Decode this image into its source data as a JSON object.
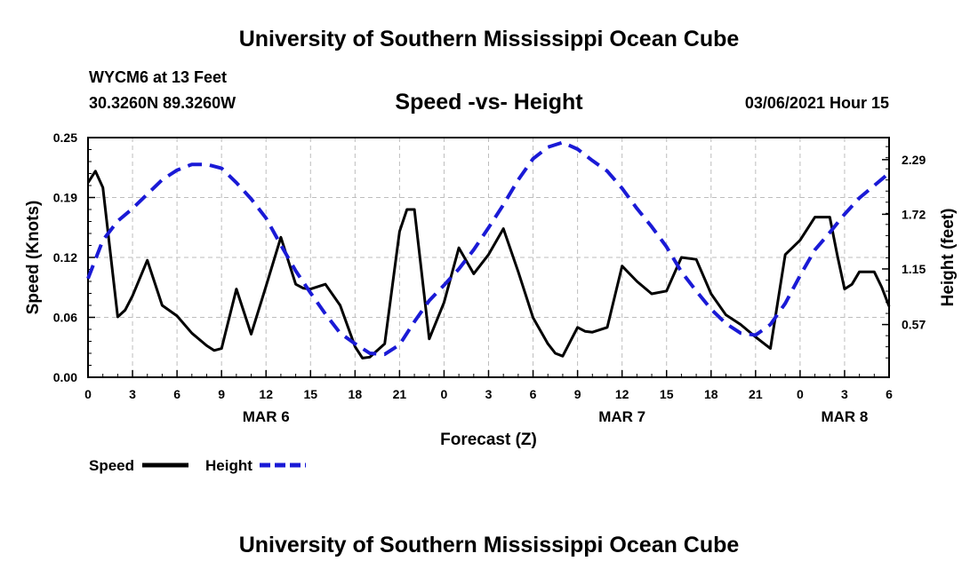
{
  "header": {
    "title_top": "University of Southern Mississippi Ocean Cube",
    "station": "WYCM6 at 13 Feet",
    "coords": "30.3260N 89.3260W",
    "subtitle": "Speed -vs- Height",
    "datestamp": "03/06/2021 Hour 15",
    "title_bottom": "University of Southern Mississippi Ocean Cube"
  },
  "colors": {
    "speed": "#000000",
    "height": "#1a1ad6",
    "grid": "#bdbdbd"
  },
  "chart_data": {
    "type": "line",
    "title": "Speed -vs- Height",
    "xlabel": "Forecast (Z)",
    "ylabel": "Speed (Knots)",
    "y2label": "Height (feet)",
    "xlim": [
      0,
      54
    ],
    "ylim": [
      0,
      0.25
    ],
    "y2lim": [
      0.02,
      2.52
    ],
    "x_ticks": [
      0,
      3,
      6,
      9,
      12,
      15,
      18,
      21,
      24,
      27,
      30,
      33,
      36,
      39,
      42,
      45,
      48,
      51,
      54
    ],
    "x_tick_labels": [
      "0",
      "3",
      "6",
      "9",
      "12",
      "15",
      "18",
      "21",
      "0",
      "3",
      "6",
      "9",
      "12",
      "15",
      "18",
      "21",
      "0",
      "3",
      "6"
    ],
    "y_ticks": [
      0,
      0.0625,
      0.125,
      0.1875,
      0.25
    ],
    "y_tick_labels": [
      "0.00",
      "0.06",
      "0.12",
      "0.19",
      "0.25"
    ],
    "y2_ticks": [
      0.57,
      1.15,
      1.72,
      2.29
    ],
    "y2_tick_labels": [
      "0.57",
      "1.15",
      "1.72",
      "2.29"
    ],
    "day_labels": [
      {
        "text": "MAR 6",
        "x": 12
      },
      {
        "text": "MAR 7",
        "x": 36
      },
      {
        "text": "MAR 8",
        "x": 51
      }
    ],
    "grid": true,
    "legend": {
      "placement": "bottom-left",
      "items": [
        "Speed",
        "Height"
      ]
    },
    "series": [
      {
        "name": "Speed",
        "axis": "left",
        "style": "solid",
        "x": [
          0,
          0.5,
          1,
          2,
          2.5,
          3,
          4,
          5,
          6,
          7,
          8,
          8.5,
          9,
          10,
          11,
          12,
          13,
          14,
          14.5,
          15,
          16,
          17,
          18,
          18.5,
          19,
          20,
          21,
          21.5,
          22,
          23,
          24,
          25,
          26,
          27,
          28,
          29,
          30,
          31,
          31.5,
          32,
          33,
          33.5,
          34,
          35,
          36,
          37,
          38,
          39,
          40,
          41,
          42,
          43,
          44,
          45,
          46,
          47,
          48,
          49,
          50,
          50.5,
          51,
          51.5,
          52,
          53,
          53.5,
          54
        ],
        "values": [
          0.203,
          0.215,
          0.198,
          0.063,
          0.07,
          0.085,
          0.122,
          0.075,
          0.064,
          0.046,
          0.033,
          0.028,
          0.03,
          0.092,
          0.045,
          0.095,
          0.146,
          0.097,
          0.093,
          0.092,
          0.097,
          0.075,
          0.032,
          0.02,
          0.021,
          0.035,
          0.152,
          0.175,
          0.175,
          0.04,
          0.078,
          0.135,
          0.108,
          0.128,
          0.155,
          0.11,
          0.062,
          0.035,
          0.025,
          0.022,
          0.052,
          0.048,
          0.047,
          0.052,
          0.116,
          0.1,
          0.087,
          0.09,
          0.125,
          0.123,
          0.087,
          0.065,
          0.055,
          0.042,
          0.03,
          0.128,
          0.143,
          0.167,
          0.167,
          0.128,
          0.092,
          0.097,
          0.11,
          0.11,
          0.094,
          0.074
        ]
      },
      {
        "name": "Height",
        "axis": "right",
        "style": "dashed",
        "x": [
          0,
          1,
          2,
          3,
          4,
          5,
          6,
          7,
          8,
          9,
          10,
          11,
          12,
          13,
          14,
          15,
          16,
          17,
          18,
          19,
          20,
          21,
          22,
          23,
          24,
          25,
          26,
          27,
          28,
          29,
          30,
          31,
          32,
          33,
          34,
          35,
          36,
          37,
          38,
          39,
          40,
          41,
          42,
          43,
          44,
          45,
          46,
          47,
          48,
          49,
          50,
          51,
          52,
          53,
          54
        ],
        "values": [
          1.05,
          1.45,
          1.65,
          1.78,
          1.93,
          2.08,
          2.18,
          2.24,
          2.24,
          2.2,
          2.05,
          1.88,
          1.68,
          1.4,
          1.13,
          0.9,
          0.68,
          0.48,
          0.37,
          0.27,
          0.26,
          0.36,
          0.6,
          0.82,
          0.98,
          1.15,
          1.35,
          1.58,
          1.82,
          2.08,
          2.3,
          2.42,
          2.47,
          2.4,
          2.28,
          2.17,
          1.99,
          1.78,
          1.59,
          1.38,
          1.12,
          0.92,
          0.73,
          0.58,
          0.48,
          0.46,
          0.57,
          0.79,
          1.08,
          1.35,
          1.53,
          1.72,
          1.89,
          2.02,
          2.15
        ]
      }
    ]
  }
}
